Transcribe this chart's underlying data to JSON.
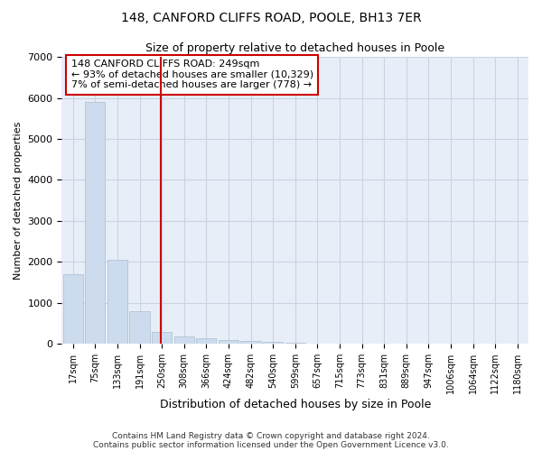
{
  "title1": "148, CANFORD CLIFFS ROAD, POOLE, BH13 7ER",
  "title2": "Size of property relative to detached houses in Poole",
  "xlabel": "Distribution of detached houses by size in Poole",
  "ylabel": "Number of detached properties",
  "bar_labels": [
    "17sqm",
    "75sqm",
    "133sqm",
    "191sqm",
    "250sqm",
    "308sqm",
    "366sqm",
    "424sqm",
    "482sqm",
    "540sqm",
    "599sqm",
    "657sqm",
    "715sqm",
    "773sqm",
    "831sqm",
    "889sqm",
    "947sqm",
    "1006sqm",
    "1064sqm",
    "1122sqm",
    "1180sqm"
  ],
  "bar_values": [
    1700,
    5900,
    2050,
    800,
    300,
    175,
    130,
    100,
    80,
    55,
    30,
    0,
    0,
    0,
    0,
    0,
    0,
    0,
    0,
    0,
    0
  ],
  "bar_color": "#ccdcee",
  "bar_edge_color": "#aabcce",
  "annotation_text": "148 CANFORD CLIFFS ROAD: 249sqm\n← 93% of detached houses are smaller (10,329)\n7% of semi-detached houses are larger (778) →",
  "annotation_box_color": "#ffffff",
  "annotation_box_edge": "#cc0000",
  "line_color": "#cc0000",
  "ylim": [
    0,
    7000
  ],
  "yticks": [
    0,
    1000,
    2000,
    3000,
    4000,
    5000,
    6000,
    7000
  ],
  "grid_color": "#c8d4e4",
  "bg_color": "#e8eef8",
  "footnote1": "Contains HM Land Registry data © Crown copyright and database right 2024.",
  "footnote2": "Contains public sector information licensed under the Open Government Licence v3.0."
}
